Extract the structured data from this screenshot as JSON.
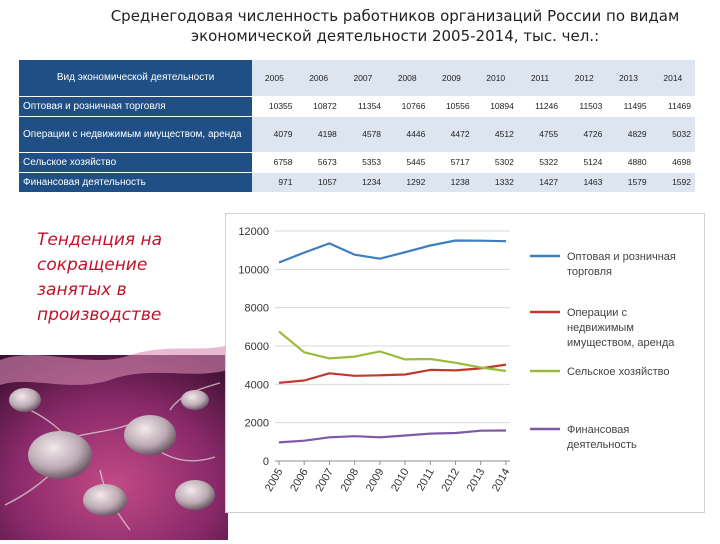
{
  "title": {
    "line1": "Среднегодовая численность работников организаций России по видам",
    "line2": "экономической деятельности 2005-2014, тыс. чел.:"
  },
  "table": {
    "header_label": "Вид экономической деятельности",
    "years": [
      "2005",
      "2006",
      "2007",
      "2008",
      "2009",
      "2010",
      "2011",
      "2012",
      "2013",
      "2014"
    ],
    "rows": [
      {
        "label": "Оптовая и розничная торговля",
        "values": [
          "10355",
          "10872",
          "11354",
          "10766",
          "10556",
          "10894",
          "11246",
          "11503",
          "11495",
          "11469"
        ]
      },
      {
        "label": "Операции с недвижимым имуществом, аренда",
        "values": [
          "4079",
          "4198",
          "4578",
          "4446",
          "4472",
          "4512",
          "4755",
          "4726",
          "4829",
          "5032"
        ]
      },
      {
        "label": "Сельское хозяйство",
        "values": [
          "6758",
          "5673",
          "5353",
          "5445",
          "5717",
          "5302",
          "5322",
          "5124",
          "4880",
          "4698"
        ]
      },
      {
        "label": "Финансовая деятельность",
        "values": [
          "971",
          "1057",
          "1234",
          "1292",
          "1238",
          "1332",
          "1427",
          "1463",
          "1579",
          "1592"
        ]
      }
    ]
  },
  "tagline": "Тенденция на сокращение занятых в производстве",
  "chart_data": {
    "type": "line",
    "x": [
      "2005",
      "2006",
      "2007",
      "2008",
      "2009",
      "2010",
      "2011",
      "2012",
      "2013",
      "2014"
    ],
    "ylim": [
      0,
      12000
    ],
    "yticks": [
      0,
      2000,
      4000,
      6000,
      8000,
      10000,
      12000
    ],
    "grid": true,
    "legend_position": "right",
    "series": [
      {
        "name": "Оптовая и розничная торговля",
        "color": "#3b7fc0",
        "values": [
          10355,
          10872,
          11354,
          10766,
          10556,
          10894,
          11246,
          11503,
          11495,
          11469
        ]
      },
      {
        "name": "Операции с недвижимым имуществом, аренда",
        "color": "#c0392b",
        "values": [
          4079,
          4198,
          4578,
          4446,
          4472,
          4512,
          4755,
          4726,
          4829,
          5032
        ]
      },
      {
        "name": "Сельское хозяйство",
        "color": "#9bbb3c",
        "values": [
          6758,
          5673,
          5353,
          5445,
          5717,
          5302,
          5322,
          5124,
          4880,
          4698
        ]
      },
      {
        "name": "Финансовая деятельность",
        "color": "#7b5aa6",
        "values": [
          971,
          1057,
          1234,
          1292,
          1238,
          1332,
          1427,
          1463,
          1579,
          1592
        ]
      }
    ]
  }
}
